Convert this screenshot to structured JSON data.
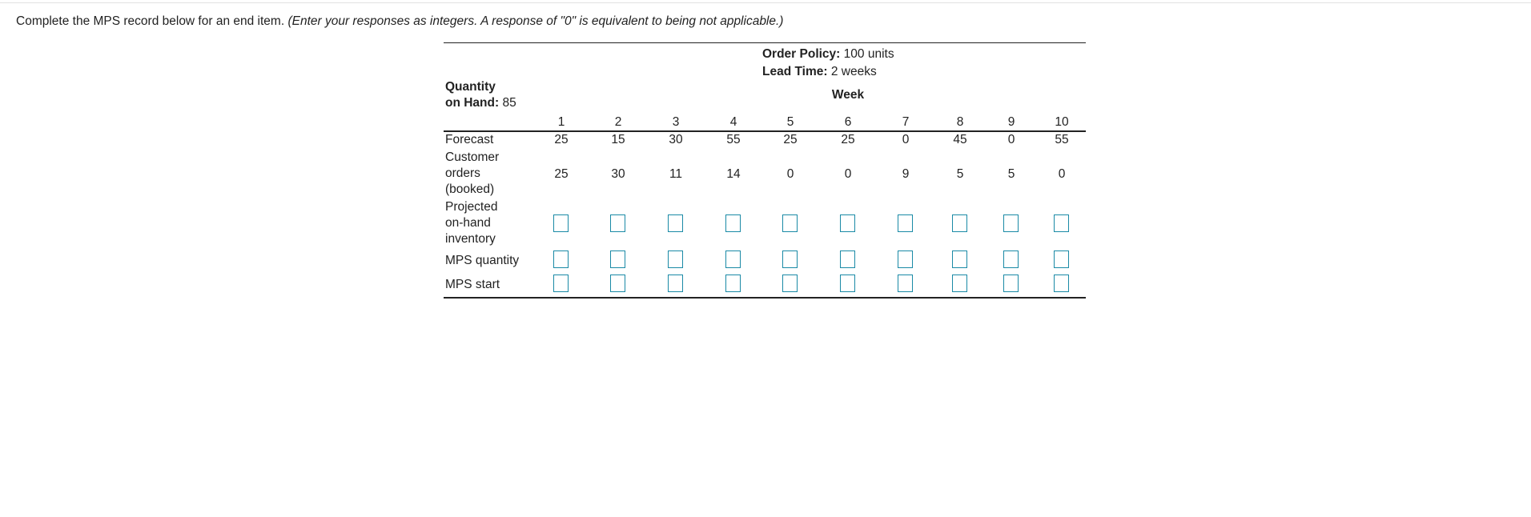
{
  "instructions": {
    "text": "Complete the MPS record below for an end item.",
    "hint": "(Enter your responses as integers. A response of \"0\" is equivalent to being not applicable.)"
  },
  "header": {
    "order_policy_label": "Order Policy:",
    "order_policy_value": "100 units",
    "lead_time_label": "Lead Time:",
    "lead_time_value": "2 weeks",
    "quantity_label_line1": "Quantity",
    "quantity_label_line2": "on Hand:",
    "quantity_value": "85",
    "week_label": "Week"
  },
  "weeks": [
    "1",
    "2",
    "3",
    "4",
    "5",
    "6",
    "7",
    "8",
    "9",
    "10"
  ],
  "rows": {
    "forecast": {
      "label": "Forecast",
      "values": [
        "25",
        "15",
        "30",
        "55",
        "25",
        "25",
        "0",
        "45",
        "0",
        "55"
      ]
    },
    "customer_orders": {
      "label_line1": "Customer",
      "label_line2": "orders",
      "label_line3": "(booked)",
      "values": [
        "25",
        "30",
        "11",
        "14",
        "0",
        "0",
        "9",
        "5",
        "5",
        "0"
      ]
    },
    "projected_inventory": {
      "label_line1": "Projected",
      "label_line2": "on-hand",
      "label_line3": "inventory",
      "values": [
        "",
        "",
        "",
        "",
        "",
        "",
        "",
        "",
        "",
        ""
      ]
    },
    "mps_quantity": {
      "label": "MPS quantity",
      "values": [
        "",
        "",
        "",
        "",
        "",
        "",
        "",
        "",
        "",
        ""
      ]
    },
    "mps_start": {
      "label": "MPS start",
      "values": [
        "",
        "",
        "",
        "",
        "",
        "",
        "",
        "",
        "",
        ""
      ]
    }
  },
  "colors": {
    "input_border": "#1a8aa6",
    "rule": "#222222"
  }
}
